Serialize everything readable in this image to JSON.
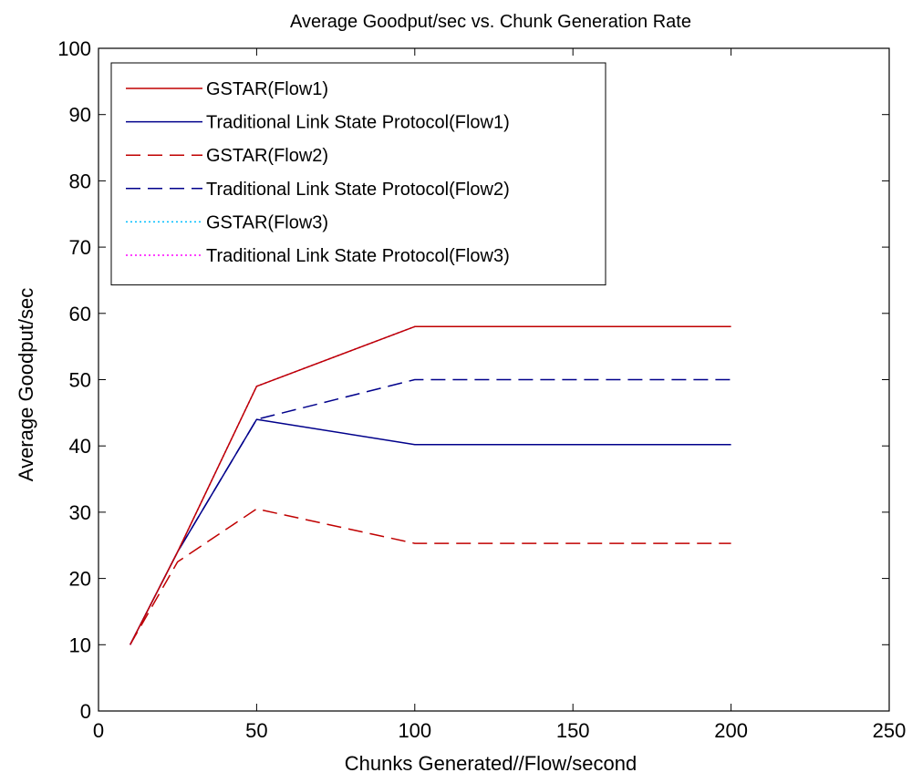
{
  "chart_data": {
    "type": "line",
    "title": "Average Goodput/sec vs. Chunk Generation Rate",
    "xlabel": "Chunks Generated//Flow/second",
    "ylabel": "Average Goodput/sec",
    "xlim": [
      0,
      250
    ],
    "ylim": [
      0,
      100
    ],
    "xticks": [
      0,
      50,
      100,
      150,
      200,
      250
    ],
    "yticks": [
      0,
      10,
      20,
      30,
      40,
      50,
      60,
      70,
      80,
      90,
      100
    ],
    "xtick_labels": [
      "0",
      "50",
      "100",
      "150",
      "200",
      "250"
    ],
    "ytick_labels": [
      "0",
      "10",
      "20",
      "30",
      "40",
      "50",
      "60",
      "70",
      "80",
      "90",
      "100"
    ],
    "grid": false,
    "legend_position": "top-left",
    "x": [
      10,
      25,
      50,
      100,
      200
    ],
    "series": [
      {
        "name": "GSTAR(Flow1)",
        "color": "#c00000",
        "style": "solid",
        "values": [
          10,
          24,
          49,
          58,
          58
        ]
      },
      {
        "name": "Traditional Link State Protocol(Flow1)",
        "color": "#00008b",
        "style": "solid",
        "values": [
          10,
          24,
          44,
          40.2,
          40.2
        ]
      },
      {
        "name": "GSTAR(Flow2)",
        "color": "#c00000",
        "style": "dashed",
        "values": [
          10,
          22.5,
          30.5,
          25.3,
          25.3
        ]
      },
      {
        "name": "Traditional Link State Protocol(Flow2)",
        "color": "#00008b",
        "style": "dashed",
        "values": [
          10,
          24,
          44,
          50,
          50
        ]
      },
      {
        "name": "GSTAR(Flow3)",
        "color": "#00bfff",
        "style": "dotted",
        "values": [
          10,
          24,
          49,
          58,
          58
        ]
      },
      {
        "name": "Traditional Link State Protocol(Flow3)",
        "color": "#ff00ff",
        "style": "dotted",
        "values": [
          10,
          24,
          49,
          58,
          58
        ]
      }
    ]
  }
}
